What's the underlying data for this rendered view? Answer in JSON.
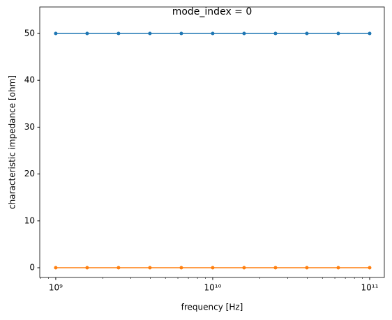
{
  "chart_data": {
    "type": "line",
    "title": "mode_index = 0",
    "x_label": "frequency [Hz]",
    "y_label": "characteristic impedance [ohm]",
    "x_scale": "log",
    "x": [
      1000000000,
      1585000000,
      2512000000,
      3981000000,
      6310000000,
      10000000000,
      15850000000,
      25120000000,
      39810000000,
      63100000000,
      100000000000
    ],
    "series": [
      {
        "color": "#1f77b4",
        "values": [
          50,
          50,
          50,
          50,
          50,
          50,
          50,
          50,
          50,
          50,
          50
        ]
      },
      {
        "color": "#ff7f0e",
        "values": [
          0,
          0,
          0,
          0,
          0,
          0,
          0,
          0,
          0,
          0,
          0
        ]
      }
    ],
    "xlim": [
      791000000,
      124000000000
    ],
    "xticks": [
      {
        "value": 1000000000,
        "label": "10⁹"
      },
      {
        "value": 10000000000,
        "label": "10¹⁰"
      },
      {
        "value": 100000000000,
        "label": "10¹¹"
      }
    ],
    "ylim": [
      -2.08,
      55.65
    ],
    "yticks": [
      0,
      10,
      20,
      30,
      40,
      50
    ]
  }
}
